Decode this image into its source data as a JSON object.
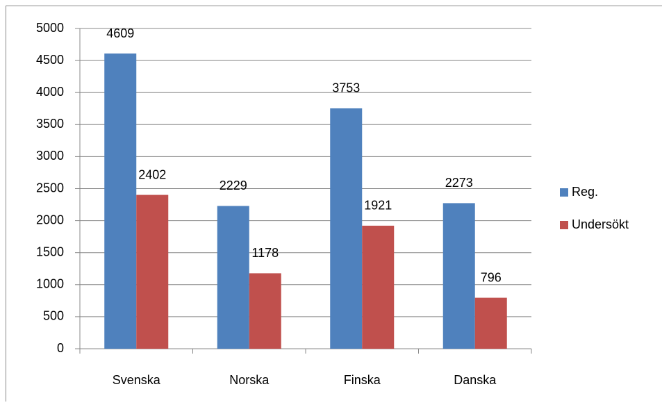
{
  "chart_data": {
    "type": "bar",
    "categories": [
      "Svenska",
      "Norska",
      "Finska",
      "Danska"
    ],
    "series": [
      {
        "name": "Reg.",
        "color": "#4f81bd",
        "values": [
          4609,
          2229,
          3753,
          2273
        ]
      },
      {
        "name": "Undersökt",
        "color": "#c0504d",
        "values": [
          2402,
          1178,
          1921,
          796
        ]
      }
    ],
    "ylim": [
      0,
      5000
    ],
    "yticks": [
      0,
      500,
      1000,
      1500,
      2000,
      2500,
      3000,
      3500,
      4000,
      4500,
      5000
    ],
    "grid": true,
    "legend": "right"
  }
}
